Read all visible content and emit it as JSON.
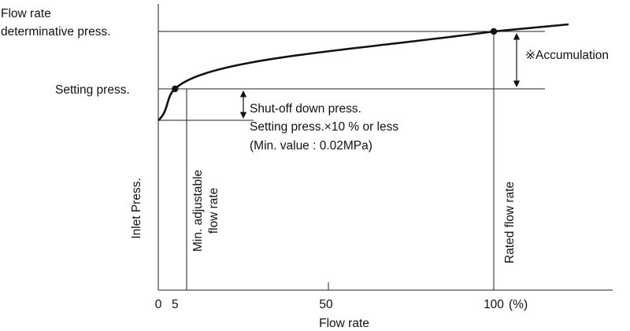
{
  "chart_data": {
    "type": "line",
    "xlabel": "Flow rate",
    "ylabel": "Inlet Press.",
    "x_unit_label": "(%)",
    "x_ticks": [
      {
        "value": 0,
        "label": "0"
      },
      {
        "value": 5,
        "label": "5"
      },
      {
        "value": 50,
        "label": "50"
      },
      {
        "value": 100,
        "label": "100"
      }
    ],
    "xlim": [
      0,
      100
    ],
    "pressure_levels": {
      "shut_off": "Shut-off down press.",
      "setting": "Setting press.",
      "flow_rate_determinative": "Flow rate determinative press."
    },
    "y_labels": {
      "setting": "Setting press.",
      "flow_rate_determinative_line1": "Flow rate",
      "flow_rate_determinative_line2": "determinative press."
    },
    "key_points": [
      {
        "x": 5,
        "level": "Setting press."
      },
      {
        "x": 100,
        "level": "Flow rate determinative press."
      }
    ],
    "vertical_markers": [
      {
        "x": 5,
        "label_line1": "Min. adjustable",
        "label_line2": "flow rate"
      },
      {
        "x": 100,
        "label_line1": "Rated flow rate"
      }
    ],
    "annotations": {
      "accumulation": "※Accumulation",
      "shutoff_line1": "Shut-off down press.",
      "shutoff_line2": "Setting press.×10 % or less",
      "shutoff_line3": "(Min. value : 0.02MPa)"
    }
  }
}
